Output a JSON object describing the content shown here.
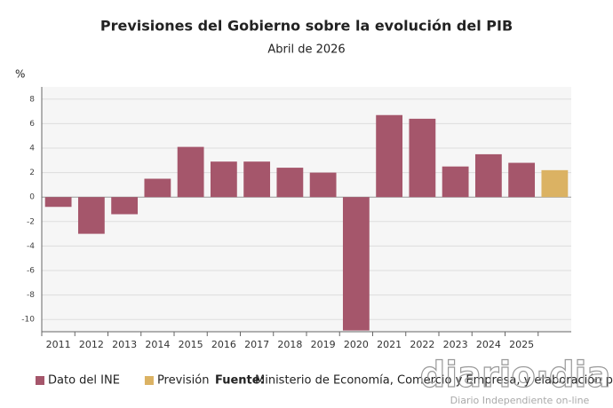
{
  "chart_data": {
    "type": "bar",
    "title": "Previsiones del Gobierno sobre la evolución del PIB",
    "subtitle": "Abril de 2026",
    "y_label": "%",
    "categories": [
      "2011",
      "2012",
      "2013",
      "2014",
      "2015",
      "2016",
      "2017",
      "2018",
      "2019",
      "2020",
      "2021",
      "2022",
      "2023",
      "2024",
      "2025",
      null
    ],
    "series": [
      {
        "name": "Dato del INE",
        "color": "#a5566b",
        "values": [
          -0.8,
          -3.0,
          -1.4,
          1.5,
          4.1,
          2.9,
          2.9,
          2.4,
          2.0,
          -10.9,
          6.7,
          6.4,
          2.5,
          3.5,
          2.8,
          null
        ]
      },
      {
        "name": "Previsión",
        "color": "#dbb263",
        "values": [
          null,
          null,
          null,
          null,
          null,
          null,
          null,
          null,
          null,
          null,
          null,
          null,
          null,
          null,
          null,
          2.2
        ]
      }
    ],
    "ylim": [
      -11,
      9
    ],
    "yticks": [
      -10,
      -8,
      -6,
      -4,
      -2,
      0,
      2,
      4,
      6,
      8
    ],
    "grid": true,
    "source_label": "Fuente:",
    "source": "Ministerio de Economía, Comercio y Empresa, y elaboración propia",
    "watermark": "diario·dia",
    "watermark_sub": "Diario Independiente on-line"
  }
}
